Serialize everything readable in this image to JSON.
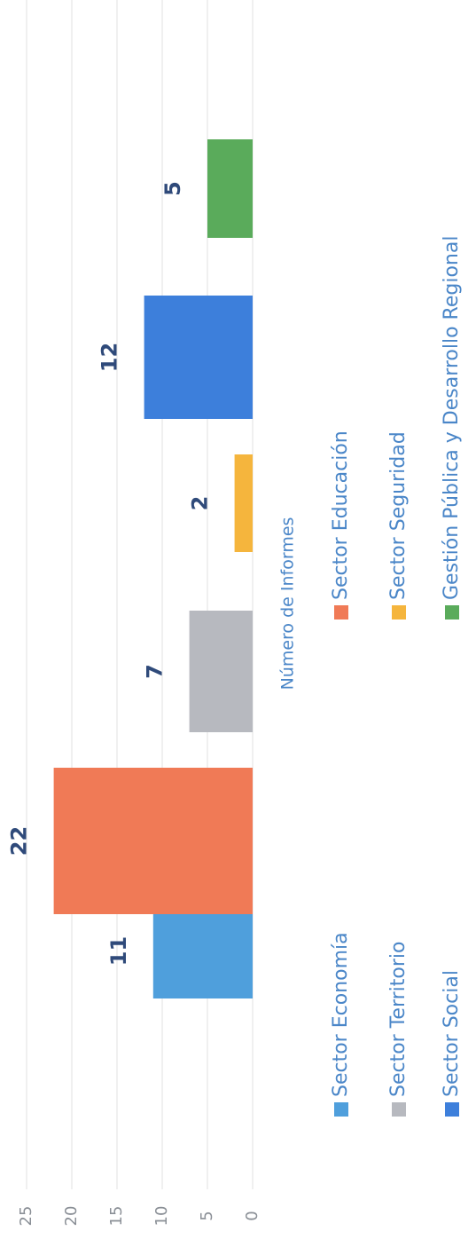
{
  "chart_data": {
    "type": "bar",
    "x_label": "Número de Informes",
    "categories": [
      "Sector Economía",
      "Sector Educación",
      "Sector Territorio",
      "Sector Seguridad",
      "Sector Social",
      "Gestión Pública y Desarrollo Regional"
    ],
    "values": [
      11,
      22,
      7,
      2,
      12,
      5
    ],
    "colors": [
      "#4f9fdc",
      "#f07a56",
      "#b7b9bf",
      "#f5b53d",
      "#3d7fdb",
      "#5aab5b"
    ],
    "ylim": [
      0,
      25
    ],
    "yticks": [
      0,
      5,
      10,
      15,
      20,
      25
    ],
    "grid": true,
    "legend": "bottom"
  }
}
